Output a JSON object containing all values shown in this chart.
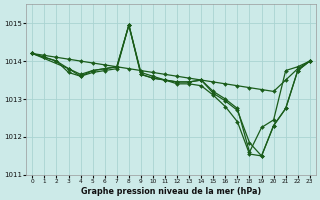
{
  "xlabel": "Graphe pression niveau de la mer (hPa)",
  "bg_color": "#cceae8",
  "grid_color": "#aad4d2",
  "line_color": "#1a5c1a",
  "marker_color": "#1a5c1a",
  "ylim": [
    1011.0,
    1015.5
  ],
  "yticks": [
    1011,
    1012,
    1013,
    1014,
    1015
  ],
  "xlim": [
    -0.5,
    23.5
  ],
  "xticks": [
    0,
    1,
    2,
    3,
    4,
    5,
    6,
    7,
    8,
    9,
    10,
    11,
    12,
    13,
    14,
    15,
    16,
    17,
    18,
    19,
    20,
    21,
    22,
    23
  ],
  "line1_x": [
    0,
    1,
    2,
    3,
    4,
    5,
    6,
    7,
    8,
    9,
    10,
    11,
    12,
    13,
    14,
    15,
    16,
    17,
    18,
    19,
    20,
    21,
    22,
    23
  ],
  "line1_y": [
    1014.2,
    1014.15,
    1014.1,
    1014.05,
    1014.0,
    1013.95,
    1013.9,
    1013.85,
    1013.8,
    1013.75,
    1013.7,
    1013.65,
    1013.6,
    1013.55,
    1013.5,
    1013.45,
    1013.4,
    1013.35,
    1013.3,
    1013.25,
    1013.2,
    1013.5,
    1013.8,
    1014.0
  ],
  "line2_x": [
    0,
    1,
    2,
    3,
    4,
    5,
    6,
    7,
    8,
    9,
    10,
    11,
    12,
    13,
    14,
    15,
    16,
    17,
    18,
    19,
    20,
    21,
    22,
    23
  ],
  "line2_y": [
    1014.2,
    1014.1,
    1014.0,
    1013.8,
    1013.65,
    1013.75,
    1013.8,
    1013.85,
    1014.95,
    1013.65,
    1013.55,
    1013.5,
    1013.45,
    1013.45,
    1013.5,
    1013.2,
    1013.0,
    1012.75,
    1011.6,
    1012.25,
    1012.45,
    1013.75,
    1013.85,
    1014.0
  ],
  "line3_x": [
    0,
    1,
    2,
    3,
    4,
    5,
    6,
    7,
    8,
    9,
    10,
    11,
    12,
    13,
    14,
    15,
    16,
    17,
    18,
    19,
    20,
    21,
    22,
    23
  ],
  "line3_y": [
    1014.2,
    1014.1,
    1014.0,
    1013.7,
    1013.6,
    1013.75,
    1013.8,
    1013.85,
    1014.95,
    1013.7,
    1013.6,
    1013.5,
    1013.4,
    1013.4,
    1013.35,
    1013.1,
    1012.8,
    1012.4,
    1011.55,
    1011.5,
    1012.3,
    1012.75,
    1013.75,
    1014.0
  ],
  "line4_x": [
    0,
    3,
    4,
    5,
    6,
    7,
    8,
    9,
    10,
    11,
    12,
    13,
    14,
    15,
    16,
    17,
    18,
    19,
    20,
    21,
    22,
    23
  ],
  "line4_y": [
    1014.2,
    1013.8,
    1013.6,
    1013.7,
    1013.75,
    1013.8,
    1014.95,
    1013.65,
    1013.55,
    1013.5,
    1013.45,
    1013.45,
    1013.5,
    1013.15,
    1012.95,
    1012.7,
    1011.85,
    1011.5,
    1012.3,
    1012.75,
    1013.75,
    1014.0
  ]
}
